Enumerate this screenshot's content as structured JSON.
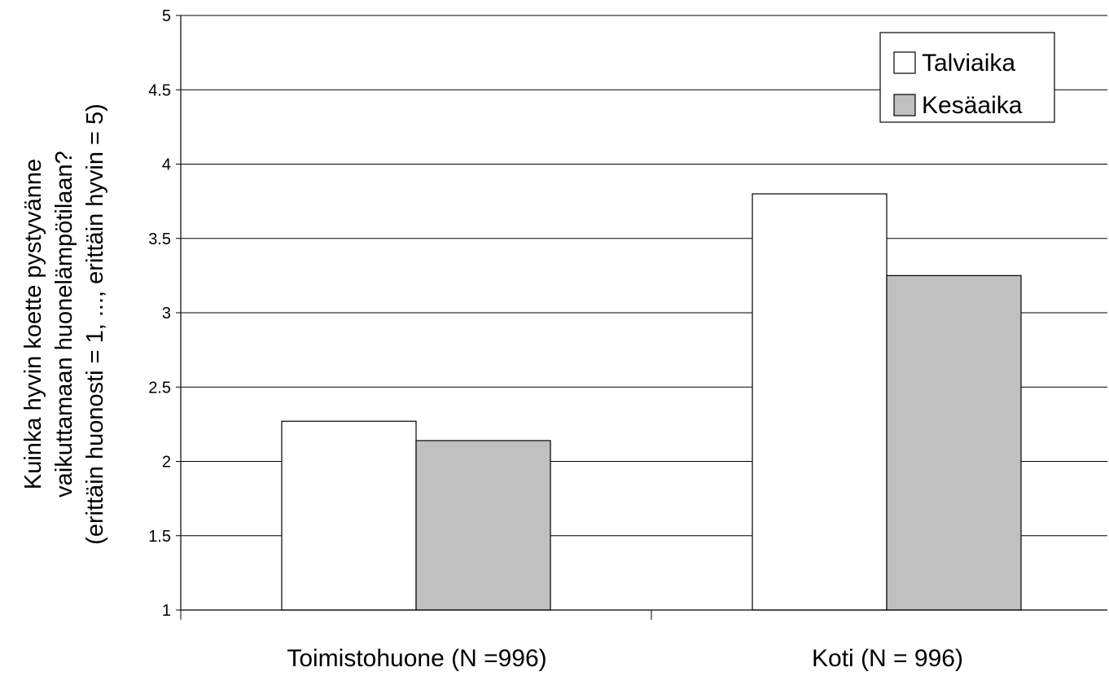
{
  "chart_data": {
    "type": "bar",
    "categories": [
      "Toimistohuone (N =996)",
      "Koti (N = 996)"
    ],
    "series": [
      {
        "name": "Talviaika",
        "values": [
          2.27,
          3.8
        ],
        "color": "#ffffff"
      },
      {
        "name": "Kesäaika",
        "values": [
          2.14,
          3.25
        ],
        "color": "#c0c0c0"
      }
    ],
    "ylabel_lines": [
      "Kuinka hyvin koette pystyvänne",
      "vaikuttamaan huonelämpötilaan?",
      "(erittäin huonosti = 1, ..., erittäin hyvin = 5)"
    ],
    "ylim": [
      1,
      5
    ],
    "yticks": [
      "1",
      "1.5",
      "2",
      "2.5",
      "3",
      "3.5",
      "4",
      "4.5",
      "5"
    ],
    "grid": true,
    "legend_position": "top-right"
  }
}
